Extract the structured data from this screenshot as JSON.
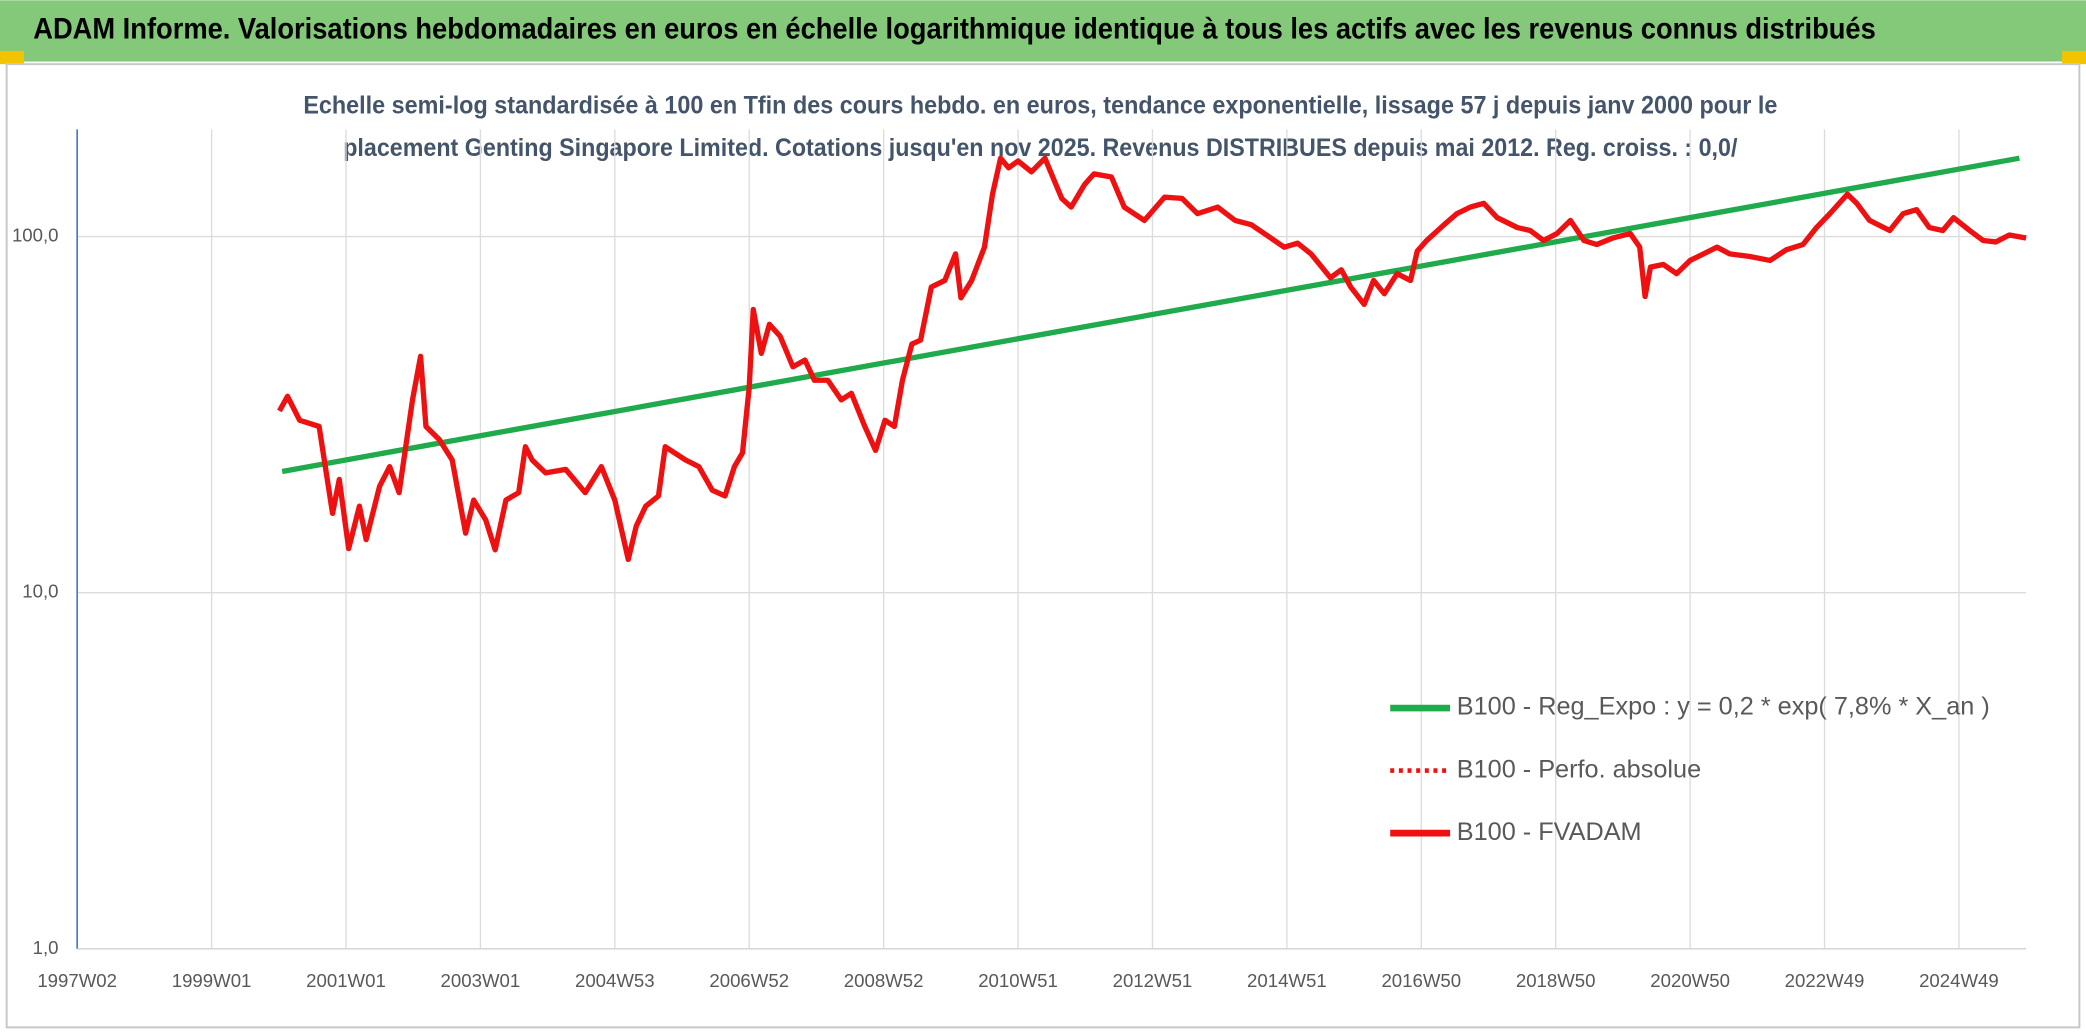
{
  "header": {
    "title": "ADAM Informe. Valorisations hebdomadaires en euros en échelle logarithmique identique à tous les actifs avec les revenus connus distribués"
  },
  "chart_data": {
    "type": "line",
    "title": [
      "Echelle semi-log standardisée à 100 en Tfin des cours hebdo. en euros, tendance exponentielle, lissage 57 j depuis janv 2000 pour le",
      "placement Genting Singapore Limited. Cotations jusqu'en nov 2025. Revenus DISTRIBUES depuis mai 2012. Reg. croiss. : 0,0/"
    ],
    "log_y": true,
    "grid": true,
    "xlim": [
      1997,
      2026
    ],
    "ylim": [
      1,
      200
    ],
    "xticks": [
      {
        "value": 1997,
        "label": "1997W02"
      },
      {
        "value": 1999,
        "label": "1999W01"
      },
      {
        "value": 2001,
        "label": "2001W01"
      },
      {
        "value": 2003,
        "label": "2003W01"
      },
      {
        "value": 2005,
        "label": "2004W53"
      },
      {
        "value": 2007,
        "label": "2006W52"
      },
      {
        "value": 2009,
        "label": "2008W52"
      },
      {
        "value": 2011,
        "label": "2010W51"
      },
      {
        "value": 2013,
        "label": "2012W51"
      },
      {
        "value": 2015,
        "label": "2014W51"
      },
      {
        "value": 2017,
        "label": "2016W50"
      },
      {
        "value": 2019,
        "label": "2018W50"
      },
      {
        "value": 2021,
        "label": "2020W50"
      },
      {
        "value": 2023,
        "label": "2022W49"
      },
      {
        "value": 2025,
        "label": "2024W49"
      }
    ],
    "yticks": [
      {
        "value": 1,
        "label": "1,0"
      },
      {
        "value": 10,
        "label": "10,0"
      },
      {
        "value": 100,
        "label": "100,0"
      }
    ],
    "series": [
      {
        "name": "B100 - Reg_Expo : y = 0,2 * exp( 7,8% *  X_an )",
        "color": "#1faa4b",
        "style": "solid",
        "x": [
          2000.05,
          2025.9
        ],
        "values": [
          21.9,
          166
        ]
      },
      {
        "name": "B100 - Perfo. absolue",
        "color": "#ee1111",
        "style": "dotted",
        "x": [
          2000.01,
          2000.13,
          2000.31,
          2000.6,
          2000.8,
          2000.9,
          2001.04,
          2001.2,
          2001.3,
          2001.5,
          2001.65,
          2001.79,
          2001.99,
          2002.11,
          2002.19,
          2002.39,
          2002.58,
          2002.78,
          2002.9,
          2003.08,
          2003.22,
          2003.38,
          2003.57,
          2003.67,
          2003.77,
          2003.97,
          2004.27,
          2004.56,
          2004.8,
          2005.0,
          2005.2,
          2005.32,
          2005.46,
          2005.65,
          2005.75,
          2005.89,
          2006.05,
          2006.25,
          2006.45,
          2006.64,
          2006.78,
          2006.9,
          2007.0,
          2007.06,
          2007.18,
          2007.3,
          2007.46,
          2007.65,
          2007.83,
          2007.97,
          2008.17,
          2008.37,
          2008.52,
          2008.72,
          2008.88,
          2009.02,
          2009.16,
          2009.28,
          2009.42,
          2009.55,
          2009.71,
          2009.91,
          2010.07,
          2010.15,
          2010.31,
          2010.5,
          2010.62,
          2010.74,
          2010.86,
          2011.0,
          2011.2,
          2011.4,
          2011.65,
          2011.79,
          2011.99,
          2012.13,
          2012.39,
          2012.58,
          2012.88,
          2013.18,
          2013.44,
          2013.67,
          2013.97,
          2014.23,
          2014.47,
          2014.76,
          2014.96,
          2015.16,
          2015.36,
          2015.65,
          2015.81,
          2015.95,
          2016.15,
          2016.29,
          2016.45,
          2016.64,
          2016.84,
          2016.94,
          2017.08,
          2017.34,
          2017.53,
          2017.73,
          2017.93,
          2018.13,
          2018.43,
          2018.62,
          2018.82,
          2019.02,
          2019.22,
          2019.42,
          2019.61,
          2019.85,
          2020.11,
          2020.25,
          2020.33,
          2020.41,
          2020.6,
          2020.8,
          2021.0,
          2021.2,
          2021.4,
          2021.59,
          2021.89,
          2022.19,
          2022.43,
          2022.68,
          2022.88,
          2023.08,
          2023.34,
          2023.48,
          2023.67,
          2023.97,
          2024.17,
          2024.37,
          2024.56,
          2024.76,
          2024.92,
          2025.16,
          2025.36,
          2025.55,
          2025.75,
          2026.0
        ],
        "values": [
          32.4,
          35.6,
          30.5,
          29.3,
          16.7,
          20.8,
          13.3,
          17.5,
          14.1,
          19.9,
          22.6,
          19.1,
          34.8,
          46.1,
          29.3,
          26.9,
          23.6,
          14.7,
          18.2,
          16.0,
          13.2,
          18.2,
          19.1,
          25.7,
          23.6,
          21.7,
          22.2,
          19.1,
          22.6,
          18.2,
          12.4,
          15.4,
          17.5,
          18.7,
          25.7,
          24.7,
          23.6,
          22.6,
          19.4,
          18.7,
          22.6,
          24.7,
          37.8,
          62.4,
          47.0,
          56.7,
          52.5,
          43.1,
          45.0,
          39.5,
          39.5,
          34.8,
          36.3,
          29.3,
          25.1,
          30.5,
          29.3,
          39.5,
          49.9,
          51.2,
          72.2,
          75.3,
          89.4,
          67.3,
          75.3,
          93.4,
          131.5,
          166,
          156,
          163,
          152,
          166,
          128,
          121,
          140,
          150,
          147,
          121,
          111,
          129,
          128,
          116,
          121,
          111,
          108,
          99.1,
          93.4,
          95.8,
          89.4,
          76.6,
          80.7,
          72.2,
          64.5,
          75.3,
          69.1,
          78.7,
          75.3,
          91.0,
          97.5,
          108,
          116,
          121,
          124,
          113,
          106,
          104,
          97.5,
          102,
          111,
          97.5,
          95.0,
          99.1,
          102,
          93.4,
          67.9,
          82.1,
          83.5,
          78.7,
          85.7,
          89.4,
          93.4,
          89.4,
          87.9,
          85.7,
          91.8,
          95.0,
          106,
          116,
          131.5,
          124,
          111,
          104,
          116,
          119,
          106,
          104,
          113,
          104,
          97.5,
          96.6,
          101,
          99.1
        ]
      },
      {
        "name": "B100 - FVADAM",
        "color": "#ee1111",
        "style": "solid",
        "x": [
          2000.01,
          2000.13,
          2000.31,
          2000.6,
          2000.8,
          2000.9,
          2001.04,
          2001.2,
          2001.3,
          2001.5,
          2001.65,
          2001.79,
          2001.99,
          2002.11,
          2002.19,
          2002.39,
          2002.58,
          2002.78,
          2002.9,
          2003.08,
          2003.22,
          2003.38,
          2003.57,
          2003.67,
          2003.77,
          2003.97,
          2004.27,
          2004.56,
          2004.8,
          2005.0,
          2005.2,
          2005.32,
          2005.46,
          2005.65,
          2005.75,
          2005.89,
          2006.05,
          2006.25,
          2006.45,
          2006.64,
          2006.78,
          2006.9,
          2007.0,
          2007.06,
          2007.18,
          2007.3,
          2007.46,
          2007.65,
          2007.83,
          2007.97,
          2008.17,
          2008.37,
          2008.52,
          2008.72,
          2008.88,
          2009.02,
          2009.16,
          2009.28,
          2009.42,
          2009.55,
          2009.71,
          2009.91,
          2010.07,
          2010.15,
          2010.31,
          2010.5,
          2010.62,
          2010.74,
          2010.86,
          2011.0,
          2011.2,
          2011.4,
          2011.65,
          2011.79,
          2011.99,
          2012.13,
          2012.39,
          2012.58,
          2012.88,
          2013.18,
          2013.44,
          2013.67,
          2013.97,
          2014.23,
          2014.47,
          2014.76,
          2014.96,
          2015.16,
          2015.36,
          2015.65,
          2015.81,
          2015.95,
          2016.15,
          2016.29,
          2016.45,
          2016.64,
          2016.84,
          2016.94,
          2017.08,
          2017.34,
          2017.53,
          2017.73,
          2017.93,
          2018.13,
          2018.43,
          2018.62,
          2018.82,
          2019.02,
          2019.22,
          2019.42,
          2019.61,
          2019.85,
          2020.11,
          2020.25,
          2020.33,
          2020.41,
          2020.6,
          2020.8,
          2021.0,
          2021.2,
          2021.4,
          2021.59,
          2021.89,
          2022.19,
          2022.43,
          2022.68,
          2022.88,
          2023.08,
          2023.34,
          2023.48,
          2023.67,
          2023.97,
          2024.17,
          2024.37,
          2024.56,
          2024.76,
          2024.92,
          2025.16,
          2025.36,
          2025.55,
          2025.75,
          2026.0
        ],
        "values": [
          32.4,
          35.6,
          30.5,
          29.3,
          16.7,
          20.8,
          13.3,
          17.5,
          14.1,
          19.9,
          22.6,
          19.1,
          34.8,
          46.1,
          29.3,
          26.9,
          23.6,
          14.7,
          18.2,
          16.0,
          13.2,
          18.2,
          19.1,
          25.7,
          23.6,
          21.7,
          22.2,
          19.1,
          22.6,
          18.2,
          12.4,
          15.4,
          17.5,
          18.7,
          25.7,
          24.7,
          23.6,
          22.6,
          19.4,
          18.7,
          22.6,
          24.7,
          37.8,
          62.4,
          47.0,
          56.7,
          52.5,
          43.1,
          45.0,
          39.5,
          39.5,
          34.8,
          36.3,
          29.3,
          25.1,
          30.5,
          29.3,
          39.5,
          49.9,
          51.2,
          72.2,
          75.3,
          89.4,
          67.3,
          75.3,
          93.4,
          131.5,
          166,
          156,
          163,
          152,
          166,
          128,
          121,
          140,
          150,
          147,
          121,
          111,
          129,
          128,
          116,
          121,
          111,
          108,
          99.1,
          93.4,
          95.8,
          89.4,
          76.6,
          80.7,
          72.2,
          64.5,
          75.3,
          69.1,
          78.7,
          75.3,
          91.0,
          97.5,
          108,
          116,
          121,
          124,
          113,
          106,
          104,
          97.5,
          102,
          111,
          97.5,
          95.0,
          99.1,
          102,
          93.4,
          67.9,
          82.1,
          83.5,
          78.7,
          85.7,
          89.4,
          93.4,
          89.4,
          87.9,
          85.7,
          91.8,
          95.0,
          106,
          116,
          131.5,
          124,
          111,
          104,
          116,
          119,
          106,
          104,
          113,
          104,
          97.5,
          96.6,
          101,
          99.1
        ]
      }
    ]
  }
}
